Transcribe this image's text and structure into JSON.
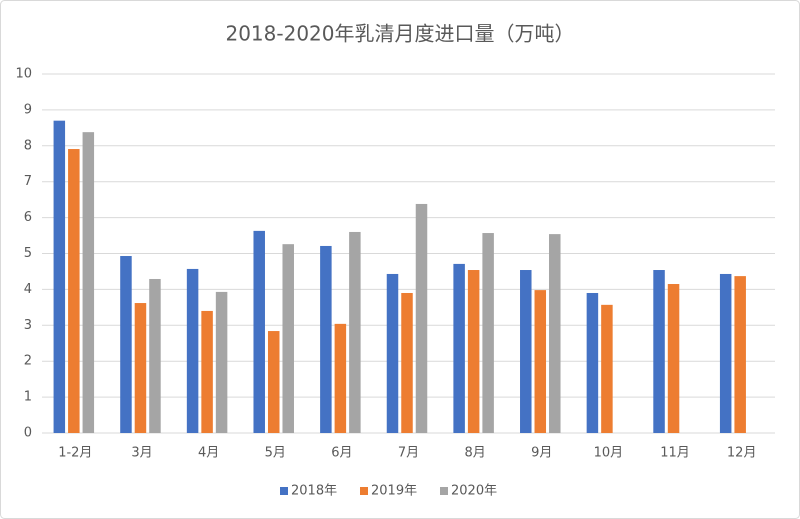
{
  "chart_data": {
    "type": "bar",
    "title": "2018-2020年乳清月度进口量（万吨）",
    "categories": [
      "1-2月",
      "3月",
      "4月",
      "5月",
      "6月",
      "7月",
      "8月",
      "9月",
      "10月",
      "11月",
      "12月"
    ],
    "series": [
      {
        "name": "2018年",
        "color": "#4472c4",
        "values": [
          8.7,
          4.93,
          4.57,
          5.63,
          5.21,
          4.43,
          4.71,
          4.54,
          3.9,
          4.54,
          4.43
        ]
      },
      {
        "name": "2019年",
        "color": "#ed7d31",
        "values": [
          7.91,
          3.62,
          3.4,
          2.84,
          3.04,
          3.9,
          4.54,
          3.98,
          3.57,
          4.15,
          4.37
        ]
      },
      {
        "name": "2020年",
        "color": "#a5a5a5",
        "values": [
          8.38,
          4.29,
          3.93,
          5.26,
          5.6,
          6.38,
          5.57,
          5.54,
          null,
          null,
          null
        ]
      }
    ],
    "ylim": [
      0,
      10
    ],
    "yticks": [
      0,
      1,
      2,
      3,
      4,
      5,
      6,
      7,
      8,
      9,
      10
    ],
    "grid": true,
    "legend": "bottom"
  }
}
